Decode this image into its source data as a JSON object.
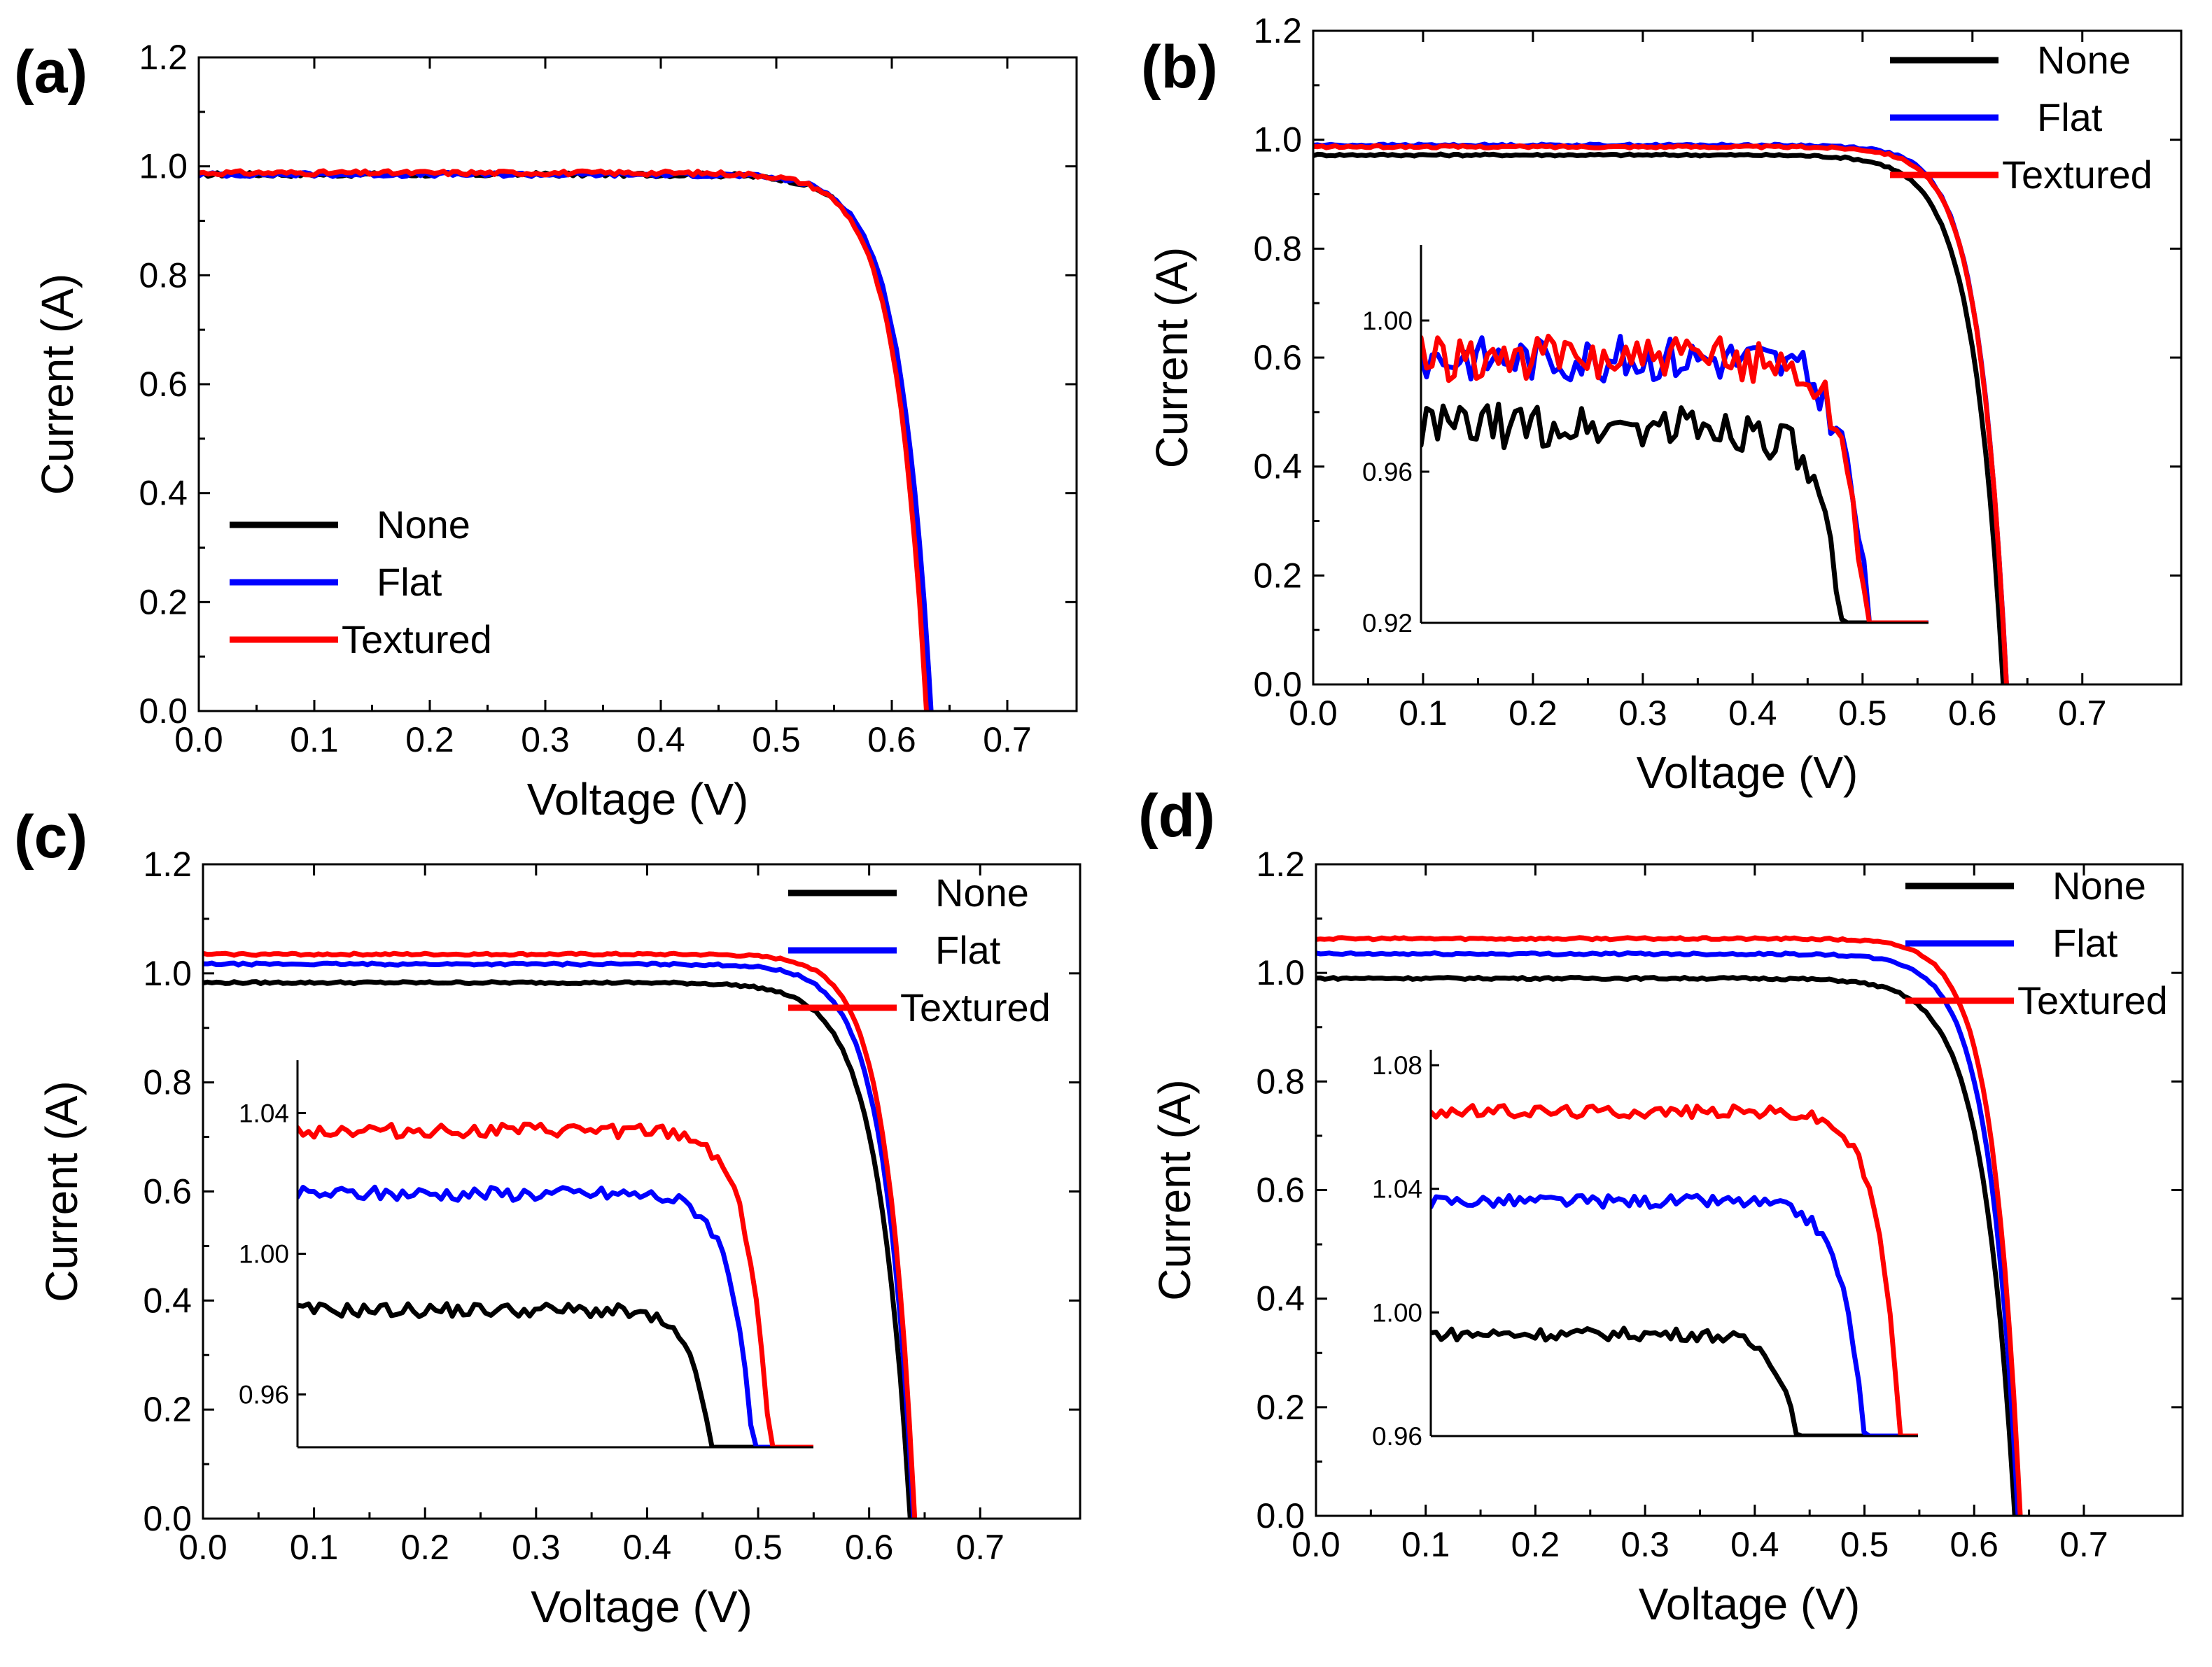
{
  "colors": {
    "None": "#000000",
    "Flat": "#0000ff",
    "Textured": "#ff0000"
  },
  "chart_data": [
    {
      "type": "line",
      "panel_label": "(a)",
      "xlabel": "Voltage (V)",
      "ylabel": "Current (A)",
      "xlim": [
        0.0,
        0.76
      ],
      "ylim": [
        0.0,
        1.2
      ],
      "xticks": [
        "0.0",
        "0.1",
        "0.2",
        "0.3",
        "0.4",
        "0.5",
        "0.6",
        "0.7"
      ],
      "yticks": [
        "0.0",
        "0.2",
        "0.4",
        "0.6",
        "0.8",
        "1.0",
        "1.2"
      ],
      "legend_position": "lower-left",
      "series": [
        {
          "name": "None",
          "isc": 0.985,
          "voc": 0.632,
          "knee": 0.064
        },
        {
          "name": "Flat",
          "isc": 0.985,
          "voc": 0.634,
          "knee": 0.064
        },
        {
          "name": "Textured",
          "isc": 0.988,
          "voc": 0.63,
          "knee": 0.064
        }
      ]
    },
    {
      "type": "line",
      "panel_label": "(b)",
      "xlabel": "Voltage (V)",
      "ylabel": "Current (A)",
      "xlim": [
        0.0,
        0.79
      ],
      "ylim": [
        0.0,
        1.2
      ],
      "xticks": [
        "0.0",
        "0.1",
        "0.2",
        "0.3",
        "0.4",
        "0.5",
        "0.6",
        "0.7"
      ],
      "yticks": [
        "0.0",
        "0.2",
        "0.4",
        "0.6",
        "0.8",
        "1.0",
        "1.2"
      ],
      "legend_position": "top-right",
      "series": [
        {
          "name": "None",
          "isc": 0.972,
          "voc": 0.628,
          "knee": 0.066
        },
        {
          "name": "Flat",
          "isc": 0.99,
          "voc": 0.631,
          "knee": 0.06
        },
        {
          "name": "Textured",
          "isc": 0.987,
          "voc": 0.631,
          "knee": 0.06
        }
      ],
      "inset": {
        "xlim": [
          0.0,
          0.55
        ],
        "ylim": [
          0.92,
          1.02
        ],
        "yticks": [
          "0.92",
          "0.96",
          "1.00"
        ],
        "series": [
          {
            "name": "None",
            "isc": 0.972,
            "voc": 0.528,
            "knee": 0.06
          },
          {
            "name": "Flat",
            "isc": 0.99,
            "voc": 0.551,
            "knee": 0.06
          },
          {
            "name": "Textured",
            "isc": 0.99,
            "voc": 0.548,
            "knee": 0.058
          }
        ]
      }
    },
    {
      "type": "line",
      "panel_label": "(c)",
      "xlabel": "Voltage (V)",
      "ylabel": "Current (A)",
      "xlim": [
        0.0,
        0.79
      ],
      "ylim": [
        0.0,
        1.2
      ],
      "xticks": [
        "0.0",
        "0.1",
        "0.2",
        "0.3",
        "0.4",
        "0.5",
        "0.6",
        "0.7"
      ],
      "yticks": [
        "0.0",
        "0.2",
        "0.4",
        "0.6",
        "0.8",
        "1.0",
        "1.2"
      ],
      "legend_position": "top-right",
      "series": [
        {
          "name": "None",
          "isc": 0.983,
          "voc": 0.637,
          "knee": 0.07
        },
        {
          "name": "Flat",
          "isc": 1.017,
          "voc": 0.64,
          "knee": 0.064
        },
        {
          "name": "Textured",
          "isc": 1.035,
          "voc": 0.641,
          "knee": 0.06
        }
      ],
      "inset": {
        "xlim": [
          0.0,
          0.56
        ],
        "ylim": [
          0.945,
          1.055
        ],
        "yticks": [
          "0.96",
          "1.00",
          "1.04"
        ],
        "series": [
          {
            "name": "None",
            "isc": 0.984,
            "voc": 0.524,
            "knee": 0.055
          },
          {
            "name": "Flat",
            "isc": 1.017,
            "voc": 0.556,
            "knee": 0.055
          },
          {
            "name": "Textured",
            "isc": 1.035,
            "voc": 0.569,
            "knee": 0.055
          }
        ]
      }
    },
    {
      "type": "line",
      "panel_label": "(d)",
      "xlabel": "Voltage (V)",
      "ylabel": "Current (A)",
      "xlim": [
        0.0,
        0.79
      ],
      "ylim": [
        0.0,
        1.2
      ],
      "xticks": [
        "0.0",
        "0.1",
        "0.2",
        "0.3",
        "0.4",
        "0.5",
        "0.6",
        "0.7"
      ],
      "yticks": [
        "0.0",
        "0.2",
        "0.4",
        "0.6",
        "0.8",
        "1.0",
        "1.2"
      ],
      "legend_position": "top-right",
      "series": [
        {
          "name": "None",
          "isc": 0.99,
          "voc": 0.637,
          "knee": 0.07
        },
        {
          "name": "Flat",
          "isc": 1.035,
          "voc": 0.64,
          "knee": 0.064
        },
        {
          "name": "Textured",
          "isc": 1.063,
          "voc": 0.642,
          "knee": 0.06
        }
      ],
      "inset": {
        "xlim": [
          0.0,
          0.56
        ],
        "ylim": [
          0.96,
          1.085
        ],
        "yticks": [
          "0.96",
          "1.00",
          "1.04",
          "1.08"
        ],
        "series": [
          {
            "name": "None",
            "isc": 0.993,
            "voc": 0.5,
            "knee": 0.055
          },
          {
            "name": "Flat",
            "isc": 1.036,
            "voc": 0.564,
            "knee": 0.06
          },
          {
            "name": "Textured",
            "isc": 1.065,
            "voc": 0.598,
            "knee": 0.06
          }
        ]
      }
    }
  ]
}
